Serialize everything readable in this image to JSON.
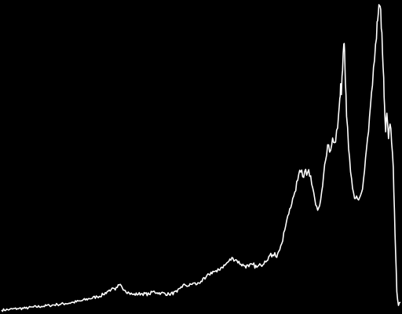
{
  "chart_data": {
    "type": "line",
    "title": "",
    "xlabel": "",
    "ylabel": "",
    "grid": false,
    "legend": "none",
    "xlim": [
      0,
      100
    ],
    "ylim": [
      0,
      100
    ],
    "colors": {
      "background": "#000000",
      "line": "#ffffff"
    },
    "series": [
      {
        "points": [
          [
            0.0,
            0.5
          ],
          [
            2.0,
            0.7
          ],
          [
            4.0,
            1.0
          ],
          [
            6.0,
            1.1
          ],
          [
            8.0,
            1.5
          ],
          [
            10.0,
            1.7
          ],
          [
            12.0,
            2.0
          ],
          [
            14.0,
            2.3
          ],
          [
            16.0,
            2.6
          ],
          [
            18.0,
            3.0
          ],
          [
            20.0,
            3.5
          ],
          [
            22.0,
            4.2
          ],
          [
            24.0,
            4.8
          ],
          [
            25.5,
            5.5
          ],
          [
            26.5,
            6.5
          ],
          [
            27.5,
            7.2
          ],
          [
            28.5,
            7.0
          ],
          [
            29.0,
            7.8
          ],
          [
            29.5,
            8.6
          ],
          [
            30.0,
            8.4
          ],
          [
            31.0,
            6.8
          ],
          [
            32.0,
            6.0
          ],
          [
            33.0,
            5.5
          ],
          [
            35.0,
            5.8
          ],
          [
            37.0,
            5.6
          ],
          [
            38.0,
            6.5
          ],
          [
            39.0,
            6.1
          ],
          [
            40.0,
            6.0
          ],
          [
            42.0,
            5.6
          ],
          [
            44.0,
            6.3
          ],
          [
            45.0,
            8.0
          ],
          [
            46.0,
            8.6
          ],
          [
            47.0,
            8.3
          ],
          [
            48.0,
            9.2
          ],
          [
            49.0,
            8.8
          ],
          [
            50.0,
            9.8
          ],
          [
            51.0,
            10.5
          ],
          [
            52.0,
            12.0
          ],
          [
            53.0,
            13.0
          ],
          [
            54.0,
            12.8
          ],
          [
            55.0,
            14.2
          ],
          [
            56.0,
            15.0
          ],
          [
            57.0,
            16.3
          ],
          [
            58.0,
            17.3
          ],
          [
            59.0,
            16.5
          ],
          [
            60.0,
            15.3
          ],
          [
            61.0,
            14.8
          ],
          [
            62.0,
            14.5
          ],
          [
            63.0,
            15.2
          ],
          [
            64.0,
            14.3
          ],
          [
            65.0,
            15.0
          ],
          [
            66.0,
            16.3
          ],
          [
            67.0,
            17.8
          ],
          [
            68.0,
            18.3
          ],
          [
            68.5,
            19.0
          ],
          [
            69.0,
            17.5
          ],
          [
            69.5,
            19.5
          ],
          [
            70.0,
            21.3
          ],
          [
            70.5,
            22.8
          ],
          [
            71.0,
            26.3
          ],
          [
            71.5,
            29.5
          ],
          [
            72.0,
            31.5
          ],
          [
            72.5,
            33.5
          ],
          [
            73.0,
            36.5
          ],
          [
            73.5,
            38.5
          ],
          [
            74.0,
            42.0
          ],
          [
            74.5,
            44.3
          ],
          [
            75.0,
            45.0
          ],
          [
            75.5,
            43.5
          ],
          [
            76.0,
            45.2
          ],
          [
            76.5,
            44.0
          ],
          [
            77.0,
            45.8
          ],
          [
            77.5,
            43.8
          ],
          [
            78.0,
            40.0
          ],
          [
            78.5,
            36.5
          ],
          [
            79.0,
            34.0
          ],
          [
            79.5,
            33.5
          ],
          [
            80.0,
            36.0
          ],
          [
            80.5,
            40.5
          ],
          [
            81.0,
            47.5
          ],
          [
            81.5,
            50.5
          ],
          [
            82.0,
            53.8
          ],
          [
            82.5,
            52.0
          ],
          [
            83.0,
            56.0
          ],
          [
            83.5,
            54.5
          ],
          [
            84.0,
            58.5
          ],
          [
            84.5,
            63.8
          ],
          [
            84.8,
            68.8
          ],
          [
            85.0,
            73.5
          ],
          [
            85.2,
            70.0
          ],
          [
            85.5,
            77.8
          ],
          [
            85.8,
            86.3
          ],
          [
            86.0,
            84.0
          ],
          [
            86.2,
            73.8
          ],
          [
            86.5,
            63.0
          ],
          [
            87.0,
            52.5
          ],
          [
            87.5,
            45.0
          ],
          [
            88.0,
            39.8
          ],
          [
            88.5,
            36.5
          ],
          [
            89.0,
            37.3
          ],
          [
            89.5,
            36.0
          ],
          [
            90.0,
            37.5
          ],
          [
            90.5,
            39.5
          ],
          [
            91.0,
            45.5
          ],
          [
            91.5,
            52.5
          ],
          [
            92.0,
            58.0
          ],
          [
            92.5,
            66.5
          ],
          [
            93.0,
            73.0
          ],
          [
            93.5,
            81.0
          ],
          [
            94.0,
            88.0
          ],
          [
            94.3,
            93.8
          ],
          [
            94.6,
            99.0
          ],
          [
            94.9,
            98.5
          ],
          [
            95.2,
            91.3
          ],
          [
            95.5,
            83.8
          ],
          [
            95.8,
            75.5
          ],
          [
            96.0,
            66.8
          ],
          [
            96.3,
            58.0
          ],
          [
            96.6,
            64.0
          ],
          [
            97.0,
            55.8
          ],
          [
            97.4,
            60.5
          ],
          [
            97.8,
            54.3
          ],
          [
            98.2,
            46.5
          ],
          [
            98.5,
            32.5
          ],
          [
            98.8,
            18.8
          ],
          [
            99.1,
            6.5
          ],
          [
            99.5,
            2.0
          ],
          [
            100.0,
            3.0
          ]
        ]
      }
    ]
  }
}
